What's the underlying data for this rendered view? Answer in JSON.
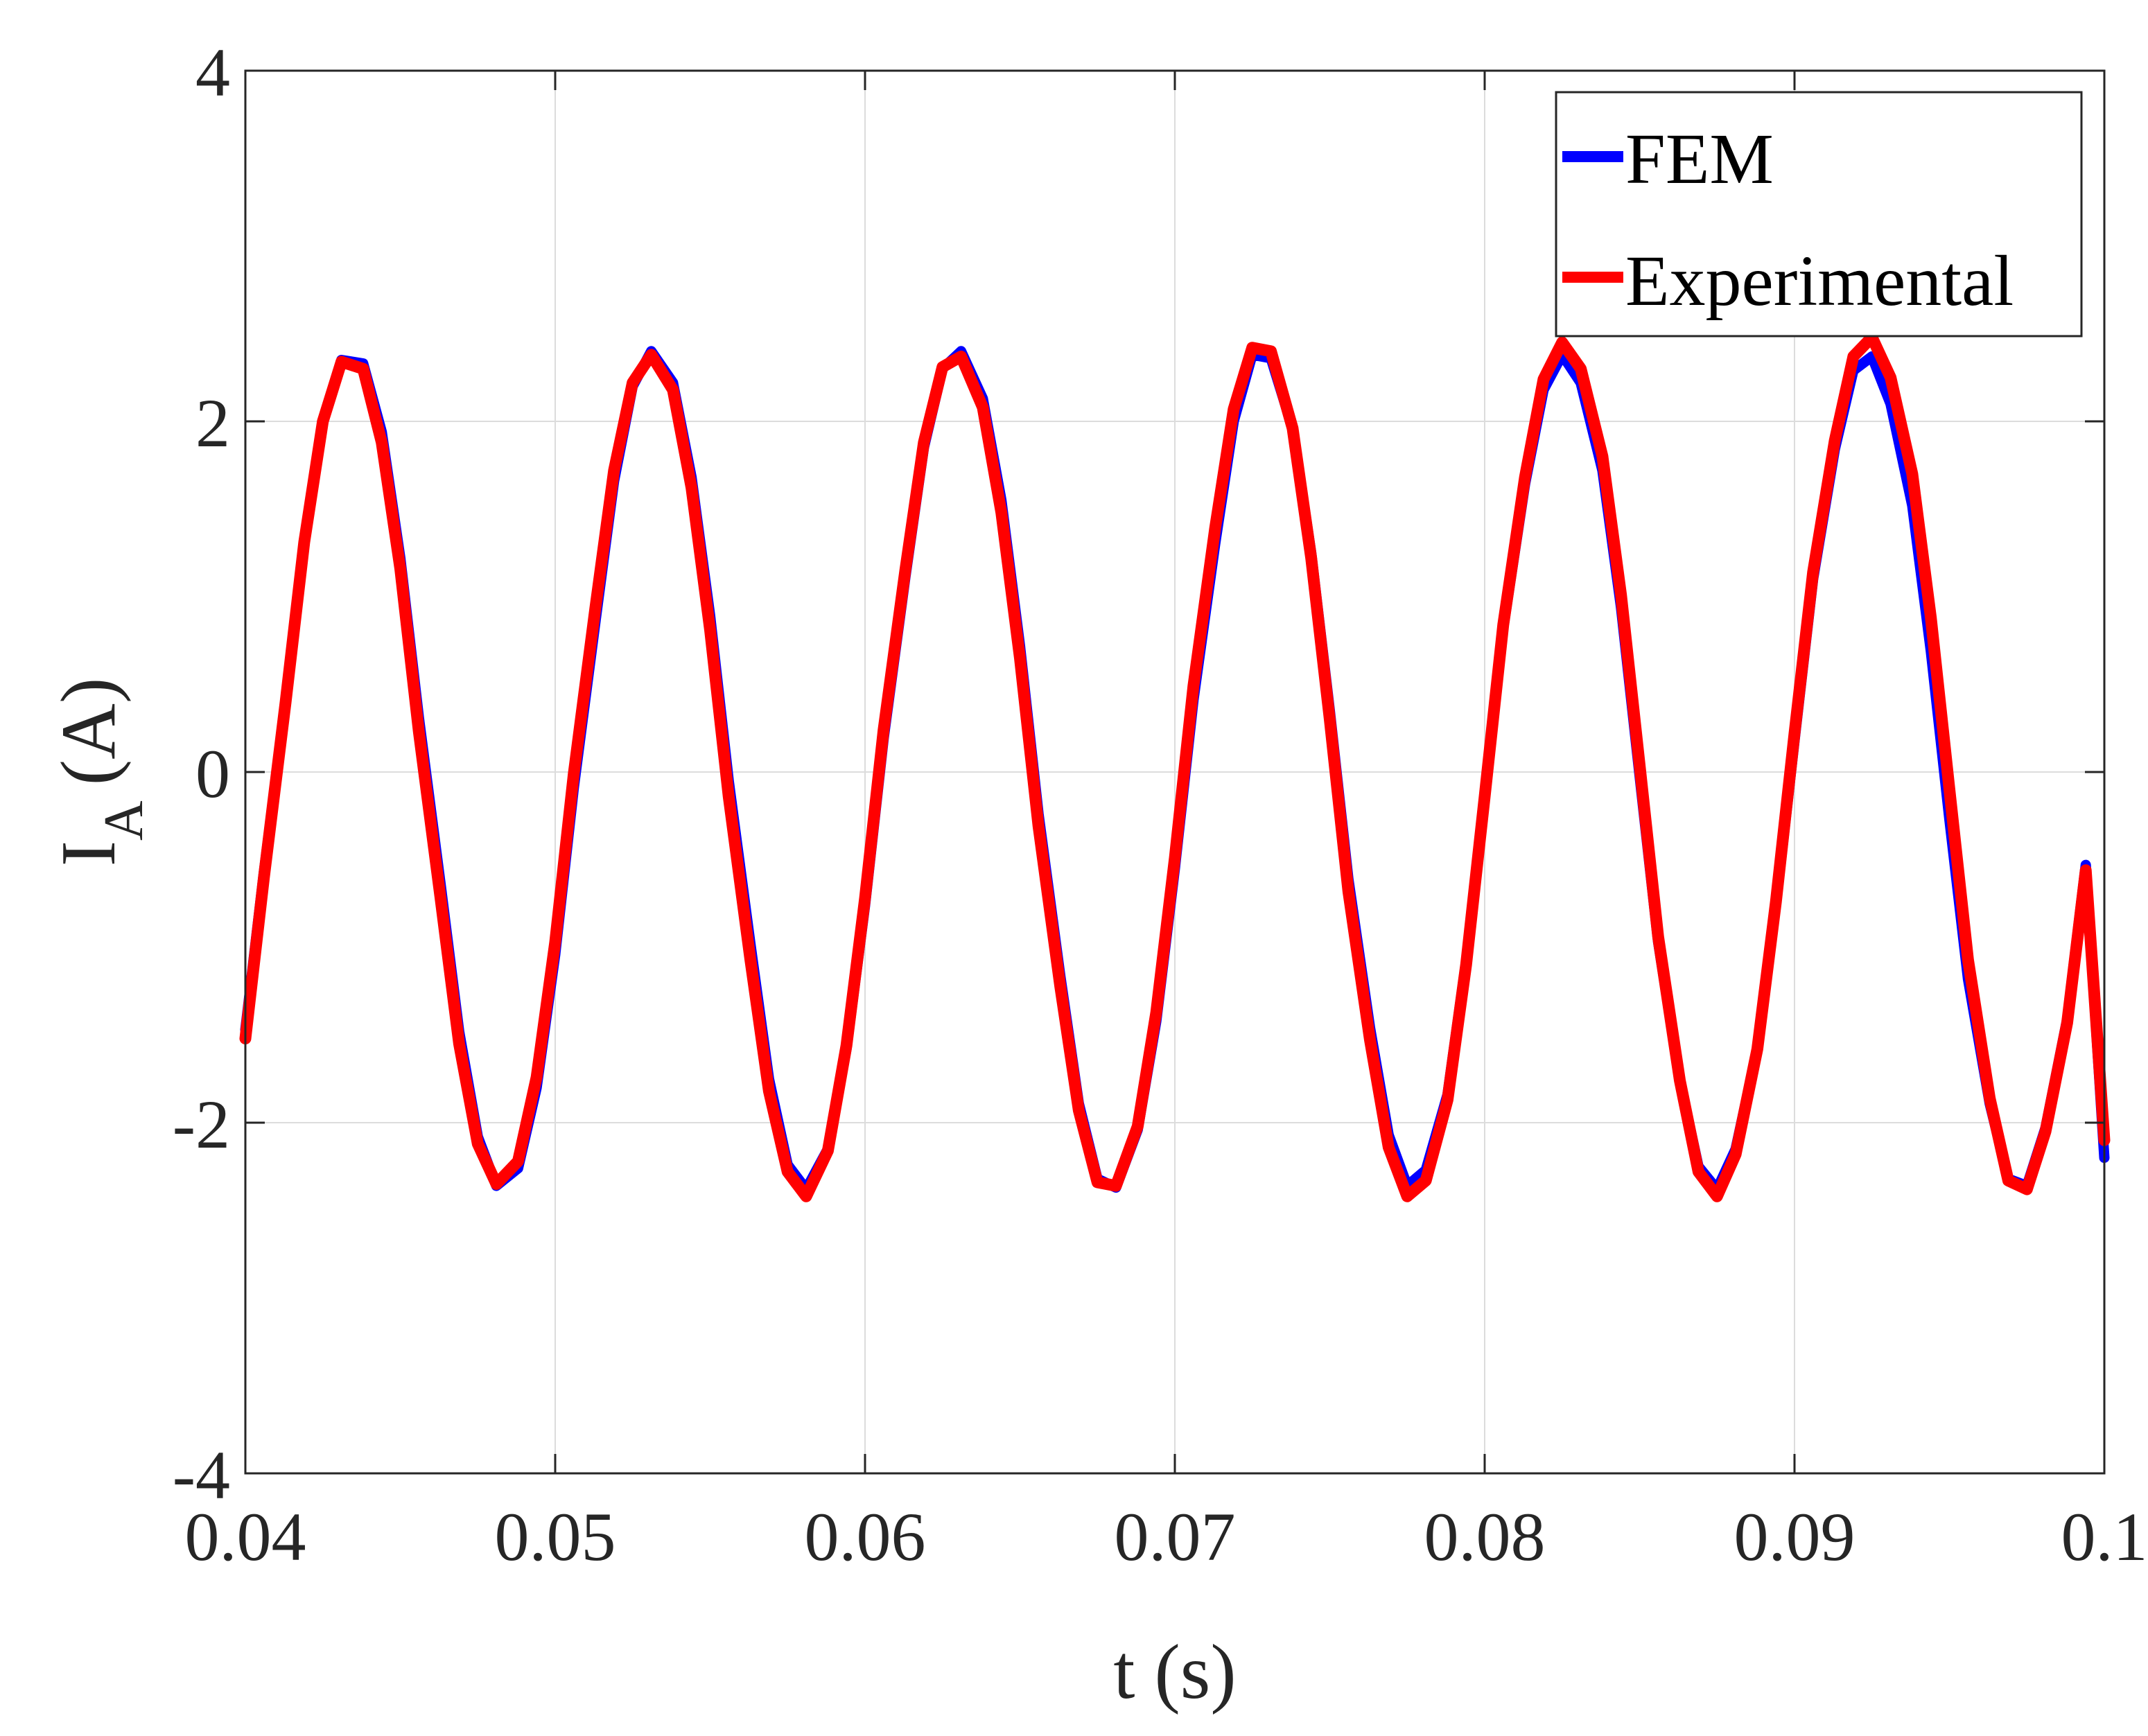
{
  "chart_data": {
    "type": "line",
    "title": "",
    "xlabel": "t (s)",
    "ylabel": {
      "main": "I",
      "sub": "A",
      "unit": "(A)"
    },
    "xlim": [
      0.04,
      0.1
    ],
    "ylim": [
      -4,
      4
    ],
    "xticks": [
      0.04,
      0.05,
      0.06,
      0.07,
      0.08,
      0.09,
      0.1
    ],
    "xtick_labels": [
      "0.04",
      "0.05",
      "0.06",
      "0.07",
      "0.08",
      "0.09",
      "0.1"
    ],
    "yticks": [
      -4,
      -2,
      0,
      2,
      4
    ],
    "ytick_labels": [
      "-4",
      "-2",
      "0",
      "2",
      "4"
    ],
    "grid": true,
    "legend": "top-right",
    "series": [
      {
        "name": "FEM",
        "color": "#0000ff",
        "x": [
          0.04,
          0.0406,
          0.0413,
          0.0419,
          0.0425,
          0.0431,
          0.0438,
          0.0444,
          0.045,
          0.0456,
          0.0463,
          0.0469,
          0.0475,
          0.0481,
          0.0488,
          0.0494,
          0.05,
          0.0506,
          0.0513,
          0.0519,
          0.0525,
          0.0531,
          0.0538,
          0.0544,
          0.055,
          0.0556,
          0.0563,
          0.0569,
          0.0575,
          0.0581,
          0.0588,
          0.0594,
          0.06,
          0.0606,
          0.0613,
          0.0619,
          0.0625,
          0.0631,
          0.0638,
          0.0644,
          0.065,
          0.0656,
          0.0663,
          0.0669,
          0.0675,
          0.0681,
          0.0688,
          0.0694,
          0.07,
          0.0706,
          0.0713,
          0.0719,
          0.0725,
          0.0731,
          0.0738,
          0.0744,
          0.075,
          0.0756,
          0.0763,
          0.0769,
          0.0775,
          0.0781,
          0.0788,
          0.0794,
          0.08,
          0.0806,
          0.0813,
          0.0819,
          0.0825,
          0.0831,
          0.0838,
          0.0844,
          0.085,
          0.0856,
          0.0863,
          0.0869,
          0.0875,
          0.0881,
          0.0888,
          0.0894,
          0.09,
          0.0906,
          0.0913,
          0.0919,
          0.0925,
          0.0931,
          0.0938,
          0.0944,
          0.095,
          0.0956,
          0.0963,
          0.0969,
          0.0975,
          0.0981,
          0.0988,
          0.0994,
          0.1
        ],
        "y": [
          -1.47,
          -0.57,
          0.4,
          1.3,
          1.99,
          2.35,
          2.33,
          1.94,
          1.22,
          0.31,
          -0.64,
          -1.48,
          -2.08,
          -2.36,
          -2.26,
          -1.8,
          -1.04,
          -0.09,
          0.86,
          1.66,
          2.2,
          2.4,
          2.22,
          1.68,
          0.89,
          -0.05,
          -0.98,
          -1.75,
          -2.24,
          -2.38,
          -2.15,
          -1.58,
          -0.76,
          0.19,
          1.11,
          1.85,
          2.3,
          2.4,
          2.13,
          1.55,
          0.72,
          -0.24,
          -1.16,
          -1.89,
          -2.32,
          -2.37,
          -2.04,
          -1.42,
          -0.55,
          0.41,
          1.3,
          2.0,
          2.38,
          2.36,
          1.96,
          1.25,
          0.35,
          -0.61,
          -1.46,
          -2.07,
          -2.36,
          -2.27,
          -1.84,
          -1.08,
          -0.14,
          0.82,
          1.64,
          2.18,
          2.38,
          2.22,
          1.72,
          0.94,
          -0.02,
          -0.97,
          -1.76,
          -2.25,
          -2.38,
          -2.15,
          -1.58,
          -0.76,
          0.18,
          1.1,
          1.84,
          2.29,
          2.37,
          2.1,
          1.52,
          0.69,
          -0.27,
          -1.18,
          -1.89,
          -2.32,
          -2.36,
          -2.03,
          -1.41,
          -0.53,
          -2.2
        ]
      },
      {
        "name": "Experimental",
        "color": "#ff0000",
        "x": [
          0.04,
          0.0406,
          0.0413,
          0.0419,
          0.0425,
          0.0431,
          0.0438,
          0.0444,
          0.045,
          0.0456,
          0.0463,
          0.0469,
          0.0475,
          0.0481,
          0.0488,
          0.0494,
          0.05,
          0.0506,
          0.0513,
          0.0519,
          0.0525,
          0.0531,
          0.0538,
          0.0544,
          0.055,
          0.0556,
          0.0563,
          0.0569,
          0.0575,
          0.0581,
          0.0588,
          0.0594,
          0.06,
          0.0606,
          0.0613,
          0.0619,
          0.0625,
          0.0631,
          0.0638,
          0.0644,
          0.065,
          0.0656,
          0.0663,
          0.0669,
          0.0675,
          0.0681,
          0.0688,
          0.0694,
          0.07,
          0.0706,
          0.0713,
          0.0719,
          0.0725,
          0.0731,
          0.0738,
          0.0744,
          0.075,
          0.0756,
          0.0763,
          0.0769,
          0.0775,
          0.0781,
          0.0788,
          0.0794,
          0.08,
          0.0806,
          0.0813,
          0.0819,
          0.0825,
          0.0831,
          0.0838,
          0.0844,
          0.085,
          0.0856,
          0.0863,
          0.0869,
          0.0875,
          0.0881,
          0.0888,
          0.0894,
          0.09,
          0.0906,
          0.0913,
          0.0919,
          0.0925,
          0.0931,
          0.0938,
          0.0944,
          0.095,
          0.0956,
          0.0963,
          0.0969,
          0.0975,
          0.0981,
          0.0988,
          0.0994,
          0.1
        ],
        "y": [
          -1.52,
          -0.6,
          0.4,
          1.31,
          2.0,
          2.34,
          2.3,
          1.88,
          1.16,
          0.23,
          -0.72,
          -1.55,
          -2.12,
          -2.35,
          -2.22,
          -1.74,
          -0.97,
          -0.01,
          0.94,
          1.72,
          2.22,
          2.38,
          2.18,
          1.62,
          0.81,
          -0.14,
          -1.07,
          -1.82,
          -2.28,
          -2.42,
          -2.16,
          -1.56,
          -0.72,
          0.24,
          1.15,
          1.88,
          2.31,
          2.37,
          2.08,
          1.48,
          0.65,
          -0.31,
          -1.22,
          -1.93,
          -2.34,
          -2.36,
          -2.02,
          -1.37,
          -0.49,
          0.49,
          1.39,
          2.07,
          2.42,
          2.4,
          1.96,
          1.22,
          0.3,
          -0.68,
          -1.53,
          -2.14,
          -2.42,
          -2.33,
          -1.87,
          -1.1,
          -0.14,
          0.84,
          1.68,
          2.24,
          2.45,
          2.3,
          1.8,
          1.01,
          0.04,
          -0.94,
          -1.76,
          -2.28,
          -2.42,
          -2.18,
          -1.58,
          -0.74,
          0.22,
          1.14,
          1.89,
          2.37,
          2.48,
          2.25,
          1.7,
          0.88,
          -0.1,
          -1.07,
          -1.86,
          -2.33,
          -2.38,
          -2.05,
          -1.43,
          -0.56,
          -2.1
        ]
      }
    ]
  }
}
